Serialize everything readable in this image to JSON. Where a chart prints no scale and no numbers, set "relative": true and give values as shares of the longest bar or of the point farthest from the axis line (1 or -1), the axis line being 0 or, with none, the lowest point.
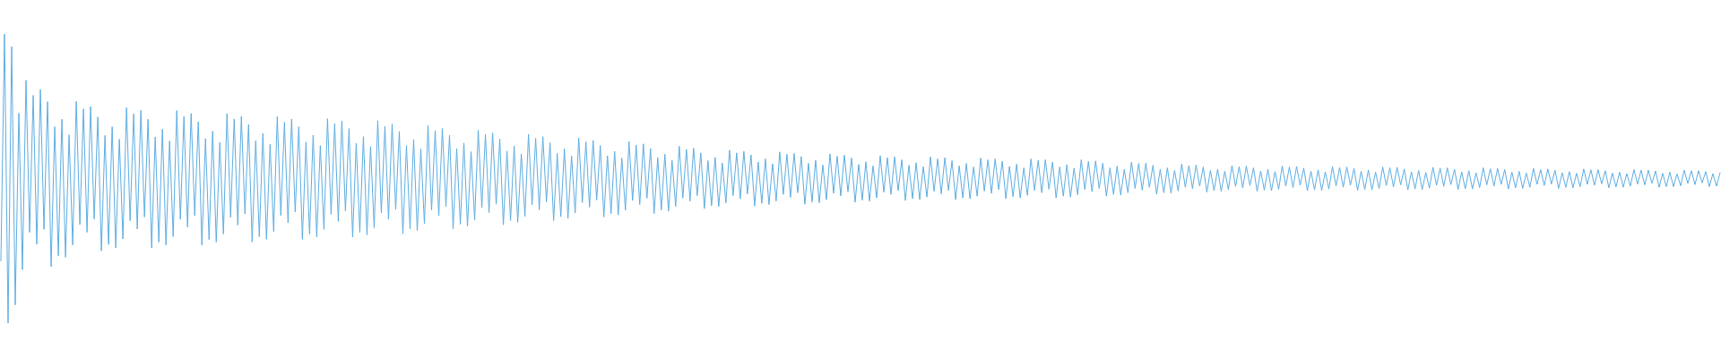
{
  "chart_data": {
    "type": "line",
    "relative": true,
    "categories": [
      null,
      null,
      null,
      null,
      null,
      null,
      null,
      null,
      null,
      null,
      null,
      null,
      null,
      null,
      null,
      null,
      null,
      null,
      null,
      null,
      null,
      null,
      null,
      null,
      null,
      null,
      null,
      null,
      null,
      null,
      null,
      null,
      null,
      null,
      null,
      null,
      null,
      null,
      null,
      null,
      null,
      null,
      null,
      null,
      null,
      null,
      null,
      null,
      null,
      null,
      null,
      null,
      null,
      null,
      null,
      null,
      null,
      null,
      null,
      null,
      null,
      null,
      null,
      null,
      null,
      null,
      null,
      null,
      null,
      null,
      null,
      null,
      null,
      null,
      null,
      null,
      null,
      null,
      null,
      null,
      null,
      null,
      null,
      null,
      null,
      null,
      null,
      null,
      null,
      null,
      null,
      null,
      null,
      null,
      null,
      null,
      null,
      null,
      null,
      null,
      null,
      null,
      null,
      null,
      null,
      null,
      null,
      null,
      null,
      null,
      null,
      null,
      null,
      null,
      null,
      null,
      null,
      null,
      null,
      null,
      null,
      null,
      null,
      null,
      null,
      null,
      null,
      null,
      null,
      null,
      null,
      null,
      null,
      null,
      null,
      null,
      null,
      null,
      null,
      null,
      null,
      null,
      null,
      null,
      null,
      null,
      null,
      null,
      null,
      null,
      null,
      null,
      null,
      null,
      null,
      null,
      null,
      null,
      null,
      null,
      null,
      null,
      null,
      null,
      null,
      null,
      null,
      null,
      null,
      null,
      null,
      null,
      null,
      null,
      null,
      null,
      null,
      null,
      null,
      null,
      null,
      null,
      null,
      null,
      null,
      null,
      null,
      null,
      null,
      null,
      null,
      null,
      null,
      null,
      null,
      null,
      null,
      null,
      null,
      null,
      null,
      null,
      null,
      null,
      null,
      null,
      null,
      null,
      null,
      null,
      null,
      null,
      null,
      null,
      null,
      null,
      null,
      null,
      null,
      null,
      null,
      null,
      null,
      null,
      null,
      null,
      null,
      null,
      null,
      null,
      null,
      null,
      null,
      null,
      null,
      null,
      null,
      null,
      null,
      null,
      null,
      null,
      null,
      null,
      null,
      null,
      null,
      null,
      null,
      null,
      null,
      null,
      null,
      null,
      null,
      null,
      null,
      null,
      null,
      null,
      null,
      null,
      null,
      null,
      null,
      null,
      null,
      null,
      null,
      null,
      null,
      null,
      null,
      null,
      null,
      null,
      null,
      null,
      null,
      null,
      null,
      null,
      null,
      null,
      null,
      null,
      null,
      null,
      null,
      null,
      null,
      null,
      null,
      null,
      null,
      null,
      null,
      null,
      null,
      null,
      null,
      null,
      null,
      null,
      null,
      null,
      null,
      null,
      null,
      null,
      null,
      null,
      null,
      null,
      null,
      null,
      null,
      null,
      null,
      null,
      null,
      null,
      null,
      null,
      null,
      null,
      null,
      null,
      null,
      null,
      null,
      null,
      null,
      null,
      null,
      null,
      null,
      null,
      null,
      null,
      null,
      null,
      null,
      null,
      null,
      null,
      null,
      null,
      null,
      null,
      null,
      null,
      null,
      null,
      null,
      null,
      null,
      null,
      null,
      null,
      null,
      null,
      null,
      null,
      null,
      null,
      null,
      null,
      null,
      null,
      null,
      null,
      null,
      null,
      null,
      null,
      null,
      null,
      null,
      null,
      null,
      null,
      null,
      null,
      null,
      null,
      null,
      null,
      null,
      null,
      null,
      null,
      null,
      null,
      null,
      null,
      null,
      null,
      null,
      null,
      null,
      null,
      null,
      null,
      null,
      null,
      null,
      null,
      null,
      null,
      null,
      null,
      null,
      null,
      null,
      null,
      null,
      null,
      null,
      null,
      null,
      null,
      null,
      null,
      null,
      null,
      null,
      null,
      null,
      null,
      null,
      null,
      null,
      null,
      null,
      null,
      null,
      null,
      null,
      null,
      null,
      null,
      null,
      null,
      null,
      null,
      null,
      null,
      null,
      null,
      null,
      null,
      null,
      null,
      null,
      null,
      null,
      null,
      null,
      null,
      null,
      null,
      null,
      null,
      null,
      null,
      null,
      null,
      null,
      null,
      null,
      null,
      null,
      null,
      null,
      null,
      null,
      null,
      null,
      null
    ],
    "series": [
      {
        "color": "#5dade2",
        "values": [
          0.215,
          1,
          0,
          0.956,
          0.063,
          0.726,
          0.185,
          0.84,
          0.314,
          0.788,
          0.273,
          0.808,
          0.324,
          0.766,
          0.195,
          0.679,
          0.233,
          0.705,
          0.228,
          0.651,
          0.27,
          0.767,
          0.341,
          0.741,
          0.314,
          0.749,
          0.36,
          0.713,
          0.25,
          0.649,
          0.272,
          0.679,
          0.26,
          0.636,
          0.291,
          0.745,
          0.354,
          0.724,
          0.325,
          0.736,
          0.367,
          0.705,
          0.26,
          0.644,
          0.28,
          0.671,
          0.27,
          0.63,
          0.299,
          0.735,
          0.359,
          0.715,
          0.332,
          0.725,
          0.372,
          0.696,
          0.27,
          0.638,
          0.289,
          0.664,
          0.28,
          0.625,
          0.308,
          0.725,
          0.366,
          0.706,
          0.339,
          0.715,
          0.378,
          0.687,
          0.281,
          0.631,
          0.299,
          0.656,
          0.29,
          0.618,
          0.317,
          0.714,
          0.372,
          0.695,
          0.347,
          0.706,
          0.384,
          0.679,
          0.29,
          0.626,
          0.308,
          0.65,
          0.298,
          0.614,
          0.324,
          0.707,
          0.376,
          0.69,
          0.352,
          0.699,
          0.388,
          0.673,
          0.297,
          0.622,
          0.314,
          0.645,
          0.305,
          0.611,
          0.33,
          0.7,
          0.381,
          0.681,
          0.359,
          0.689,
          0.393,
          0.663,
          0.309,
          0.614,
          0.326,
          0.635,
          0.32,
          0.602,
          0.344,
          0.683,
          0.391,
          0.666,
          0.371,
          0.673,
          0.403,
          0.65,
          0.326,
          0.604,
          0.342,
          0.623,
          0.335,
          0.593,
          0.357,
          0.667,
          0.4,
          0.652,
          0.382,
          0.658,
          0.411,
          0.637,
          0.34,
          0.595,
          0.355,
          0.613,
          0.349,
          0.585,
          0.369,
          0.653,
          0.409,
          0.639,
          0.392,
          0.645,
          0.419,
          0.624,
          0.355,
          0.587,
          0.368,
          0.603,
          0.362,
          0.578,
          0.381,
          0.64,
          0.417,
          0.627,
          0.401,
          0.632,
          0.426,
          0.614,
          0.367,
          0.579,
          0.379,
          0.594,
          0.374,
          0.571,
          0.391,
          0.628,
          0.424,
          0.616,
          0.41,
          0.62,
          0.432,
          0.604,
          0.379,
          0.572,
          0.391,
          0.584,
          0.387,
          0.563,
          0.404,
          0.612,
          0.433,
          0.601,
          0.422,
          0.605,
          0.441,
          0.589,
          0.396,
          0.562,
          0.406,
          0.573,
          0.403,
          0.554,
          0.416,
          0.598,
          0.441,
          0.589,
          0.43,
          0.594,
          0.447,
          0.582,
          0.405,
          0.557,
          0.414,
          0.568,
          0.41,
          0.551,
          0.422,
          0.592,
          0.445,
          0.584,
          0.435,
          0.587,
          0.451,
          0.576,
          0.411,
          0.553,
          0.419,
          0.563,
          0.416,
          0.547,
          0.427,
          0.585,
          0.449,
          0.577,
          0.44,
          0.581,
          0.454,
          0.571,
          0.418,
          0.549,
          0.425,
          0.558,
          0.422,
          0.544,
          0.433,
          0.579,
          0.453,
          0.572,
          0.445,
          0.575,
          0.458,
          0.565,
          0.424,
          0.546,
          0.43,
          0.555,
          0.427,
          0.541,
          0.436,
          0.575,
          0.456,
          0.568,
          0.447,
          0.572,
          0.459,
          0.562,
          0.427,
          0.544,
          0.433,
          0.552,
          0.43,
          0.54,
          0.439,
          0.571,
          0.457,
          0.565,
          0.449,
          0.568,
          0.462,
          0.56,
          0.43,
          0.542,
          0.437,
          0.55,
          0.433,
          0.537,
          0.442,
          0.568,
          0.459,
          0.563,
          0.451,
          0.565,
          0.463,
          0.557,
          0.433,
          0.54,
          0.439,
          0.548,
          0.436,
          0.536,
          0.444,
          0.565,
          0.462,
          0.559,
          0.455,
          0.561,
          0.466,
          0.553,
          0.439,
          0.537,
          0.445,
          0.543,
          0.443,
          0.532,
          0.451,
          0.557,
          0.466,
          0.552,
          0.46,
          0.553,
          0.47,
          0.546,
          0.446,
          0.532,
          0.451,
          0.537,
          0.45,
          0.528,
          0.457,
          0.55,
          0.47,
          0.545,
          0.465,
          0.547,
          0.474,
          0.54,
          0.453,
          0.528,
          0.458,
          0.532,
          0.456,
          0.525,
          0.462,
          0.545,
          0.473,
          0.541,
          0.468,
          0.543,
          0.476,
          0.537,
          0.456,
          0.526,
          0.46,
          0.532,
          0.458,
          0.524,
          0.463,
          0.543,
          0.474,
          0.54,
          0.469,
          0.542,
          0.477,
          0.536,
          0.458,
          0.525,
          0.461,
          0.53,
          0.459,
          0.523,
          0.464,
          0.541,
          0.475,
          0.538,
          0.47,
          0.54,
          0.477,
          0.535,
          0.459,
          0.525,
          0.462,
          0.529,
          0.461,
          0.522,
          0.466,
          0.54,
          0.476,
          0.537,
          0.471,
          0.539,
          0.478,
          0.533,
          0.461,
          0.523,
          0.464,
          0.528,
          0.462,
          0.521,
          0.467,
          0.539,
          0.477,
          0.536,
          0.473,
          0.537,
          0.479,
          0.532,
          0.462,
          0.523,
          0.465,
          0.527,
          0.464,
          0.52,
          0.469,
          0.537,
          0.478,
          0.534,
          0.474,
          0.535,
          0.48,
          0.531,
          0.464,
          0.522,
          0.468,
          0.525,
          0.466,
          0.519,
          0.47,
          0.535,
          0.48,
          0.531,
          0.476,
          0.533,
          0.481,
          0.529,
          0.466,
          0.52,
          0.47,
          0.524,
          0.468,
          0.518,
          0.472,
          0.533,
          0.48,
          0.53,
          0.477,
          0.531,
          0.482,
          0.527,
          0.468,
          0.519,
          0.471,
          0.522,
          0.47,
          0.517,
          0.474,
          0.531,
          0.481,
          0.529,
          0.478,
          0.529,
          0.484,
          0.526,
          0.47,
          0.518,
          0.472,
          0.522,
          0.472,
          0.516,
          0.475,
          0.529,
          0.483,
          0.527,
          0.479,
          0.527,
          0.485,
          0.524,
          0.472,
          0.517,
          0.474,
          0.52
        ]
      }
    ]
  }
}
